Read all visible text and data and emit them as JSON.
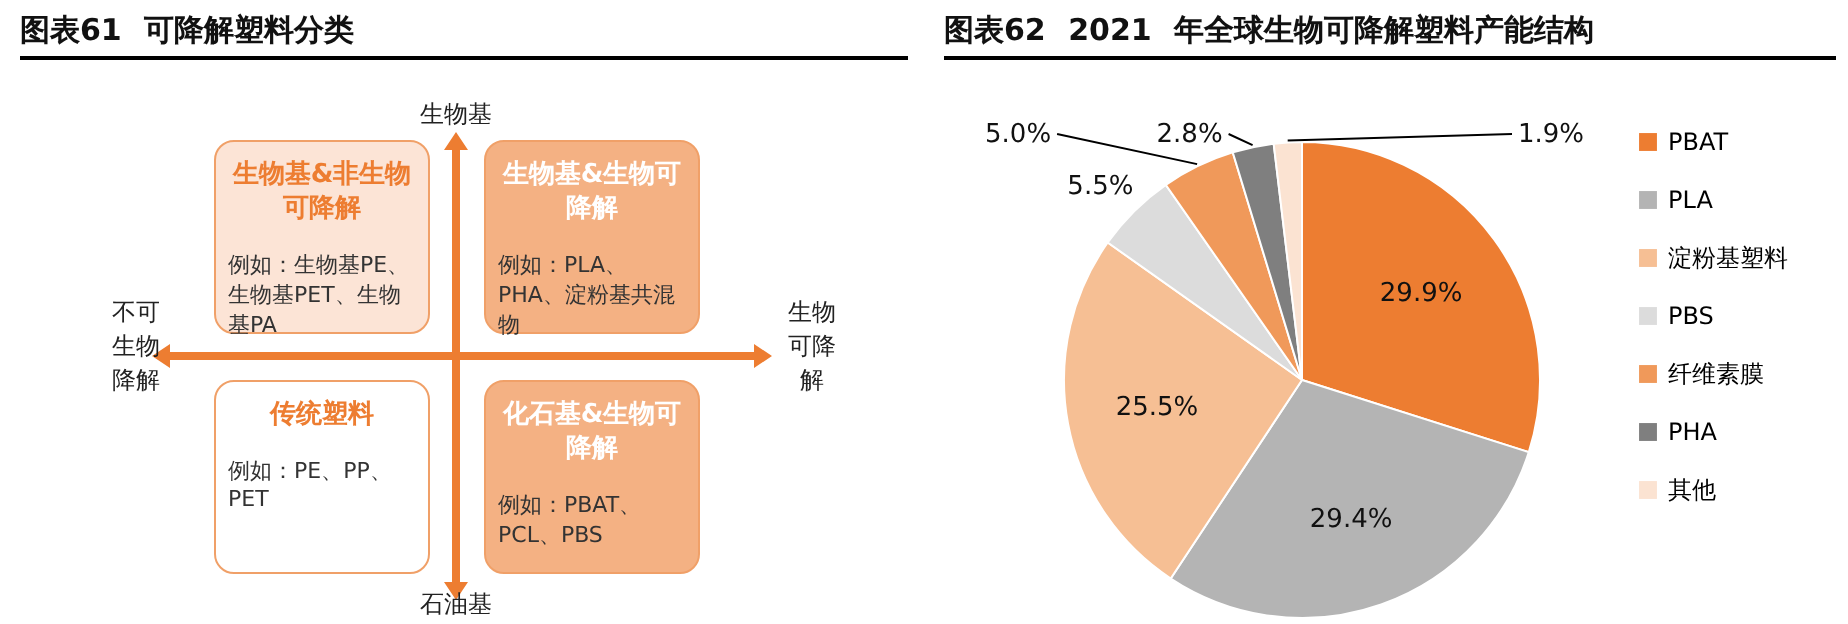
{
  "chart_data": [
    {
      "type": "other",
      "title": "图表61 可降解塑料分类",
      "annotations": [
        "生物基",
        "石油基",
        "不可生物降解",
        "生物可降解",
        "生物基&非生物可降解",
        "生物基&生物可降解",
        "传统塑料",
        "化石基&生物可降解",
        "例如：生物基PE、生物基PET、生物基PA",
        "例如：PLA、PHA、淀粉基共混物",
        "例如：PE、PP、PET",
        "例如：PBAT、PCL、PBS"
      ]
    },
    {
      "type": "pie",
      "title": "图表62 2021 年全球生物可降解塑料产能结构",
      "categories": [
        "PBAT",
        "PLA",
        "淀粉基塑料",
        "PBS",
        "纤维素膜",
        "PHA",
        "其他"
      ],
      "values": [
        29.9,
        29.4,
        25.5,
        5.5,
        5.0,
        2.8,
        1.9
      ],
      "colors": [
        "#ed7d31",
        "#b4b4b4",
        "#f6bf94",
        "#dcdcdc",
        "#f0995a",
        "#7f7f7f",
        "#fbe3d2"
      ],
      "value_labels": [
        "29.9%",
        "29.4%",
        "25.5%",
        "5.5%",
        "5.0%",
        "2.8%",
        "1.9%"
      ],
      "legend": "right"
    }
  ]
}
